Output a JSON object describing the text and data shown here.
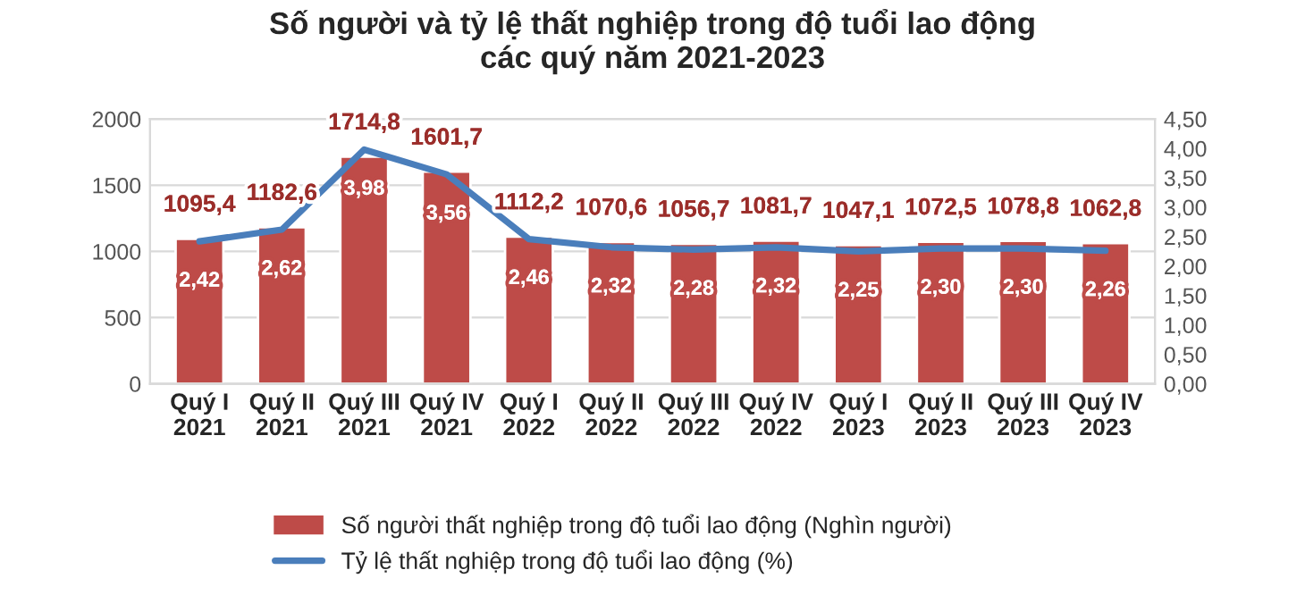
{
  "chart_data": {
    "type": "bar",
    "title": "Số người và tỷ lệ thất nghiệp trong độ tuổi lao động\ncác quý năm 2021-2023",
    "categories": [
      "Quý I\n2021",
      "Quý II\n2021",
      "Quý III\n2021",
      "Quý IV\n2021",
      "Quý I\n2022",
      "Quý II\n2022",
      "Quý III\n2022",
      "Quý IV\n2022",
      "Quý I\n2023",
      "Quý II\n2023",
      "Quý III\n2023",
      "Quý IV\n2023"
    ],
    "series": [
      {
        "name": "Số người thất nghiệp trong độ tuổi lao động (Nghìn người)",
        "color": "#be4b48",
        "values": [
          1095.4,
          1182.6,
          1714.8,
          1601.7,
          1112.2,
          1070.6,
          1056.7,
          1081.7,
          1047.1,
          1072.5,
          1078.8,
          1062.8
        ],
        "value_labels": [
          "1095,4",
          "1182,6",
          "1714,8",
          "1601,7",
          "1112,2",
          "1070,6",
          "1056,7",
          "1081,7",
          "1047,1",
          "1072,5",
          "1078,8",
          "1062,8"
        ]
      },
      {
        "name": "Tỷ lệ thất nghiệp trong độ tuổi lao động (%)",
        "type": "line",
        "axis": "y2",
        "color": "#4a7ebb",
        "values": [
          2.42,
          2.62,
          3.98,
          3.56,
          2.46,
          2.32,
          2.28,
          2.32,
          2.25,
          2.3,
          2.3,
          2.26
        ],
        "value_labels": [
          "2,42",
          "2,62",
          "3,98",
          "3,56",
          "2,46",
          "2,32",
          "2,28",
          "2,32",
          "2,25",
          "2,30",
          "2,30",
          "2,26"
        ]
      }
    ],
    "ylim": [
      0,
      2000
    ],
    "yticks": [
      0,
      500,
      1000,
      1500,
      2000
    ],
    "y2lim": [
      0,
      4.5
    ],
    "y2ticks": [
      {
        "value": 0,
        "label": "0,00"
      },
      {
        "value": 0.5,
        "label": "0,50"
      },
      {
        "value": 1,
        "label": "1,00"
      },
      {
        "value": 1.5,
        "label": "1,50"
      },
      {
        "value": 2,
        "label": "2,00"
      },
      {
        "value": 2.5,
        "label": "2,50"
      },
      {
        "value": 3,
        "label": "3,00"
      },
      {
        "value": 3.5,
        "label": "3,50"
      },
      {
        "value": 4,
        "label": "4,00"
      },
      {
        "value": 4.5,
        "label": "4,50"
      }
    ],
    "grid": "y",
    "legend": "bottom",
    "marker": "none",
    "line_style": "solid"
  }
}
